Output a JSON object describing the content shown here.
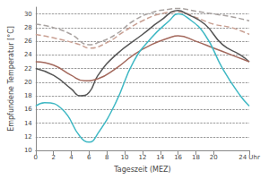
{
  "chart_data": {
    "type": "line",
    "x_label": "Tageszeit (MEZ)",
    "y_label": "Empfundene Temperatur [°C]",
    "xlim": [
      0,
      24
    ],
    "xticks": [
      0,
      2,
      4,
      6,
      8,
      10,
      12,
      14,
      16,
      18,
      20,
      {
        "value": 24,
        "label": "24 Uhr"
      }
    ],
    "ylim": [
      10,
      31
    ],
    "yticks": [
      10,
      12,
      14,
      16,
      18,
      20,
      22,
      24,
      26,
      28,
      30
    ],
    "grid": true,
    "series": [
      {
        "color": "#a9a3a1",
        "line_style": "dashed",
        "x": [
          0,
          2,
          4,
          6,
          7,
          9,
          11,
          13,
          15,
          16,
          18,
          20,
          22,
          24
        ],
        "values": [
          28.5,
          28.0,
          27.0,
          25.5,
          25.8,
          27.0,
          29.0,
          30.2,
          30.7,
          30.8,
          30.4,
          30.0,
          29.6,
          29.0
        ]
      },
      {
        "color": "#c9a093",
        "line_style": "dashed",
        "x": [
          0,
          2,
          5,
          6,
          8,
          10,
          12,
          14,
          16,
          18,
          20,
          22,
          24
        ],
        "values": [
          27.0,
          26.5,
          25.5,
          25.0,
          25.8,
          27.5,
          29.0,
          30.0,
          30.3,
          29.5,
          28.5,
          28.0,
          27.0
        ]
      },
      {
        "color": "#555555",
        "line_style": "solid",
        "x": [
          0,
          2,
          4,
          5,
          6,
          7,
          9,
          12,
          14,
          16,
          17,
          19,
          21,
          23,
          24
        ],
        "values": [
          22.0,
          21.0,
          19.0,
          18.0,
          18.5,
          21.0,
          24.0,
          27.0,
          29.0,
          30.5,
          30.0,
          28.5,
          25.5,
          24.0,
          23.0
        ]
      },
      {
        "color": "#a3685c",
        "line_style": "solid",
        "x": [
          0,
          2,
          4,
          5.5,
          7,
          9,
          11,
          13,
          15,
          16,
          18,
          20,
          22,
          24
        ],
        "values": [
          23.0,
          22.5,
          21.0,
          20.2,
          20.5,
          22.0,
          24.0,
          25.5,
          26.5,
          26.8,
          26.0,
          25.0,
          24.0,
          23.0
        ]
      },
      {
        "color": "#3fb8c4",
        "line_style": "solid",
        "x": [
          0,
          1,
          3,
          5,
          6,
          7,
          9,
          11,
          13,
          15,
          16,
          17,
          19,
          21,
          23,
          24
        ],
        "values": [
          16.5,
          17.0,
          16.0,
          12.0,
          11.2,
          12.5,
          17.0,
          23.0,
          26.5,
          29.0,
          30.0,
          29.5,
          27.0,
          22.0,
          18.0,
          16.5
        ]
      }
    ]
  }
}
